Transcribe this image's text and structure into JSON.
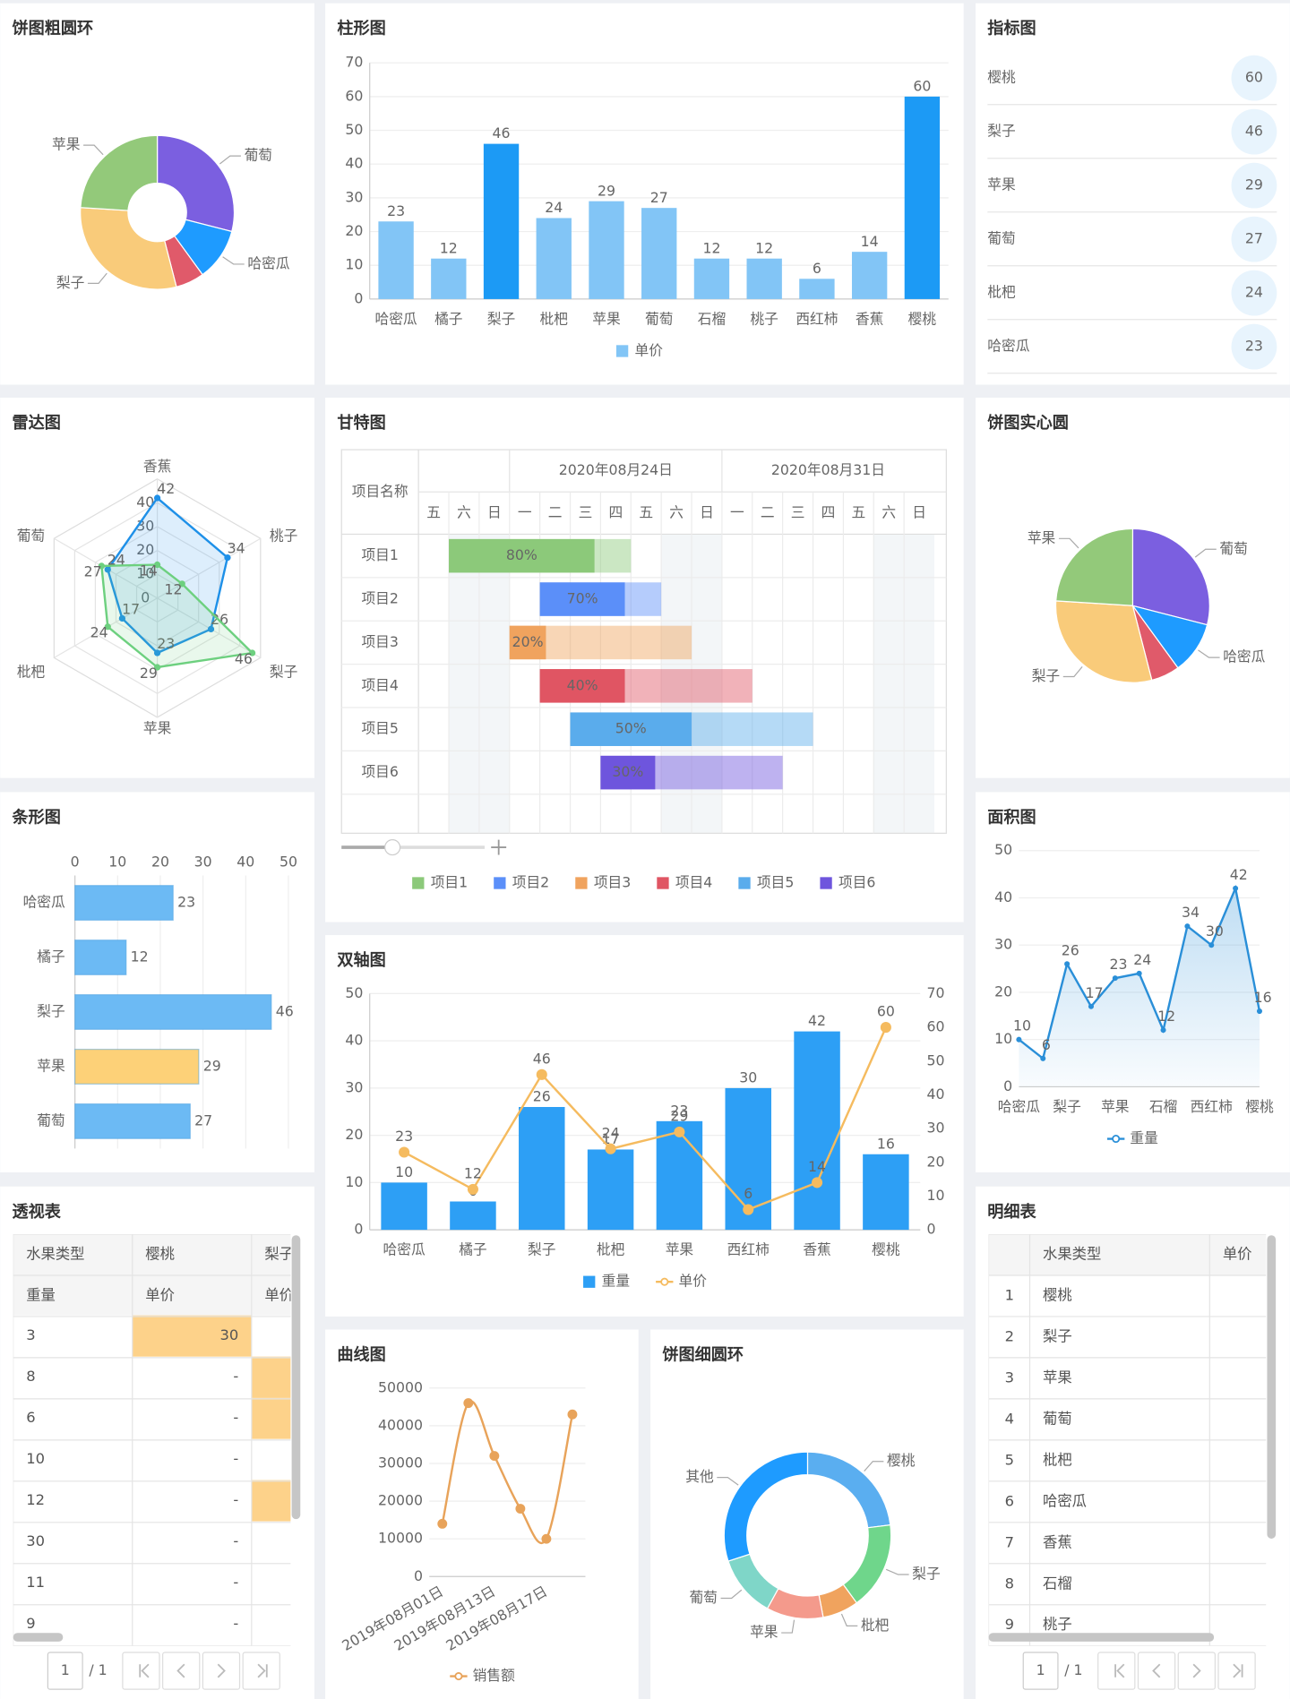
{
  "chart_data": [
    {
      "type": "donut",
      "title": "饼图粗圆环",
      "categories": [
        "葡萄",
        "哈密瓜",
        null,
        "梨子",
        "苹果"
      ],
      "values": [
        29,
        11,
        6,
        30,
        24
      ],
      "colors": [
        "#7b5fe0",
        "#1e9bff",
        "#e05a6a",
        "#f9cb7a",
        "#93c97a"
      ]
    },
    {
      "type": "bar",
      "title": "柱形图",
      "categories": [
        "哈密瓜",
        "橘子",
        "梨子",
        "枇杷",
        "苹果",
        "葡萄",
        "石榴",
        "桃子",
        "西红柿",
        "香蕉",
        "樱桃"
      ],
      "series": [
        {
          "name": "单价",
          "color": "#82c5f6",
          "colors": [
            "#82c5f6",
            "#82c5f6",
            "#1c9af5",
            "#82c5f6",
            "#82c5f6",
            "#82c5f6",
            "#82c5f6",
            "#82c5f6",
            "#82c5f6",
            "#82c5f6",
            "#1c9af5"
          ],
          "values": [
            23,
            12,
            46,
            24,
            29,
            27,
            12,
            12,
            6,
            14,
            60
          ]
        }
      ],
      "ylim": [
        0,
        70
      ],
      "yticks": [
        0,
        10,
        20,
        30,
        40,
        50,
        60,
        70
      ],
      "grid": true
    },
    {
      "type": "radar",
      "title": "雷达图",
      "categories": [
        "香蕉",
        "桃子",
        "梨子",
        "苹果",
        "枇杷",
        "葡萄"
      ],
      "series": [
        {
          "color": "#1e90e8",
          "values": [
            42,
            34,
            26,
            23,
            17,
            24
          ]
        },
        {
          "color": "#6dd07f",
          "values": [
            14,
            12,
            46,
            29,
            24,
            27
          ]
        }
      ],
      "rlim": [
        0,
        50
      ],
      "rticks": [
        0,
        10,
        20,
        30,
        40
      ]
    },
    {
      "type": "gantt",
      "title": "甘特图",
      "header": "项目名称",
      "weeks": [
        "2020年08月24日",
        "2020年08月31日"
      ],
      "days": [
        "五",
        "六",
        "日",
        "一",
        "二",
        "三",
        "四",
        "五",
        "六",
        "日",
        "一",
        "二",
        "三",
        "四",
        "五",
        "六",
        "日"
      ],
      "tasks": [
        {
          "name": "项目1",
          "start": 1,
          "end": 7,
          "progress": 80,
          "progress_label": "80%",
          "color": "#8cc97a"
        },
        {
          "name": "项目2",
          "start": 4,
          "end": 8,
          "progress": 70,
          "progress_label": "70%",
          "color": "#5b8ff9"
        },
        {
          "name": "项目3",
          "start": 3,
          "end": 9,
          "progress": 20,
          "progress_label": "20%",
          "color": "#f0a35e"
        },
        {
          "name": "项目4",
          "start": 4,
          "end": 11,
          "progress": 40,
          "progress_label": "40%",
          "color": "#e05563"
        },
        {
          "name": "项目5",
          "start": 5,
          "end": 13,
          "progress": 50,
          "progress_label": "50%",
          "color": "#5aacec"
        },
        {
          "name": "项目6",
          "start": 6,
          "end": 12,
          "progress": 30,
          "progress_label": "30%",
          "color": "#6e55dd"
        }
      ]
    },
    {
      "type": "pie",
      "title": "饼图实心圆",
      "categories": [
        "葡萄",
        "哈密瓜",
        null,
        "梨子",
        "苹果"
      ],
      "values": [
        29,
        11,
        6,
        30,
        24
      ],
      "colors": [
        "#7b5fe0",
        "#1e9bff",
        "#e05a6a",
        "#f9cb7a",
        "#93c97a"
      ]
    },
    {
      "type": "hbar",
      "title": "条形图",
      "categories": [
        "哈密瓜",
        "橘子",
        "梨子",
        "苹果",
        "葡萄"
      ],
      "series": [
        {
          "color": "#6cbaf4",
          "colors": [
            "#6cbaf4",
            "#6cbaf4",
            "#6cbaf4",
            "#fdd178",
            "#6cbaf4"
          ],
          "values": [
            23,
            12,
            46,
            29,
            27
          ]
        }
      ],
      "xlim": [
        0,
        50
      ],
      "xticks": [
        0,
        10,
        20,
        30,
        40,
        50
      ],
      "grid": true
    },
    {
      "type": "area",
      "title": "面积图",
      "categories": [
        "哈密瓜",
        null,
        "梨子",
        null,
        "苹果",
        null,
        "石榴",
        null,
        "西红柿",
        null,
        "樱桃"
      ],
      "series": [
        {
          "name": "重量",
          "color": "#2a8fd8",
          "values": [
            10,
            6,
            26,
            17,
            23,
            24,
            12,
            34,
            30,
            42,
            16
          ]
        }
      ],
      "ylim": [
        0,
        50
      ],
      "yticks": [
        0,
        10,
        20,
        30,
        40,
        50
      ],
      "grid": true
    },
    {
      "type": "bar_line",
      "title": "双轴图",
      "categories": [
        "哈密瓜",
        "橘子",
        "梨子",
        "枇杷",
        "苹果",
        "西红柿",
        "香蕉",
        "樱桃"
      ],
      "series": [
        {
          "name": "重量",
          "type": "bar",
          "color": "#2d9ff5",
          "values": [
            10,
            6,
            26,
            17,
            23,
            30,
            42,
            16
          ]
        },
        {
          "name": "单价",
          "type": "line",
          "axis": "y2",
          "color": "#f5bb5f",
          "values": [
            23,
            12,
            46,
            24,
            29,
            6,
            14,
            60
          ]
        }
      ],
      "ylim": [
        0,
        50
      ],
      "yticks": [
        0,
        10,
        20,
        30,
        40,
        50
      ],
      "y2lim": [
        0,
        70
      ],
      "y2ticks": [
        0,
        10,
        20,
        30,
        40,
        50,
        60,
        70
      ],
      "grid": true
    },
    {
      "type": "spline",
      "title": "曲线图",
      "categories": [
        "2019年08月01日",
        null,
        "2019年08月13日",
        null,
        "2019年08月17日",
        null
      ],
      "series": [
        {
          "name": "销售额",
          "color": "#e8a35a",
          "values": [
            14000,
            46000,
            32000,
            18000,
            10000,
            43000
          ]
        }
      ],
      "ylim": [
        0,
        50000
      ],
      "yticks": [
        0,
        10000,
        20000,
        30000,
        40000,
        50000
      ],
      "grid": true
    },
    {
      "type": "donut",
      "title": "饼图细圆环",
      "categories": [
        "樱桃",
        "梨子",
        "枇杷",
        "苹果",
        "葡萄",
        "其他"
      ],
      "values": [
        23,
        17,
        7,
        11,
        12,
        30
      ],
      "colors": [
        "#5aaef0",
        "#6fd68b",
        "#f0a35e",
        "#f49a8c",
        "#7fd6c8",
        "#1e9bff"
      ]
    }
  ],
  "indicator": {
    "title": "指标图",
    "items": [
      {
        "name": "樱桃",
        "value": 60
      },
      {
        "name": "梨子",
        "value": 46
      },
      {
        "name": "苹果",
        "value": 29
      },
      {
        "name": "葡萄",
        "value": 27
      },
      {
        "name": "枇杷",
        "value": 24
      },
      {
        "name": "哈密瓜",
        "value": 23
      }
    ]
  },
  "pivot_table": {
    "title": "透视表",
    "header": [
      [
        "水果类型",
        "樱桃",
        "梨子"
      ],
      [
        "重量",
        "单价",
        "单价"
      ]
    ],
    "rows": [
      [
        3,
        30
      ],
      [
        8,
        "-"
      ],
      [
        6,
        "-"
      ],
      [
        10,
        "-"
      ],
      [
        12,
        "-"
      ],
      [
        30,
        "-"
      ],
      [
        11,
        "-"
      ],
      [
        9,
        "-"
      ]
    ],
    "pager": {
      "page": 1,
      "of": "/ 1"
    }
  },
  "detail_table": {
    "title": "明细表",
    "columns": [
      "水果类型",
      "单价"
    ],
    "rows": [
      [
        1,
        "樱桃"
      ],
      [
        2,
        "梨子"
      ],
      [
        3,
        "苹果"
      ],
      [
        4,
        "葡萄"
      ],
      [
        5,
        "枇杷"
      ],
      [
        6,
        "哈密瓜"
      ],
      [
        7,
        "香蕉"
      ],
      [
        8,
        "石榴"
      ],
      [
        9,
        "桃子"
      ]
    ],
    "pager": {
      "page": 1,
      "of": "/ 1"
    }
  }
}
